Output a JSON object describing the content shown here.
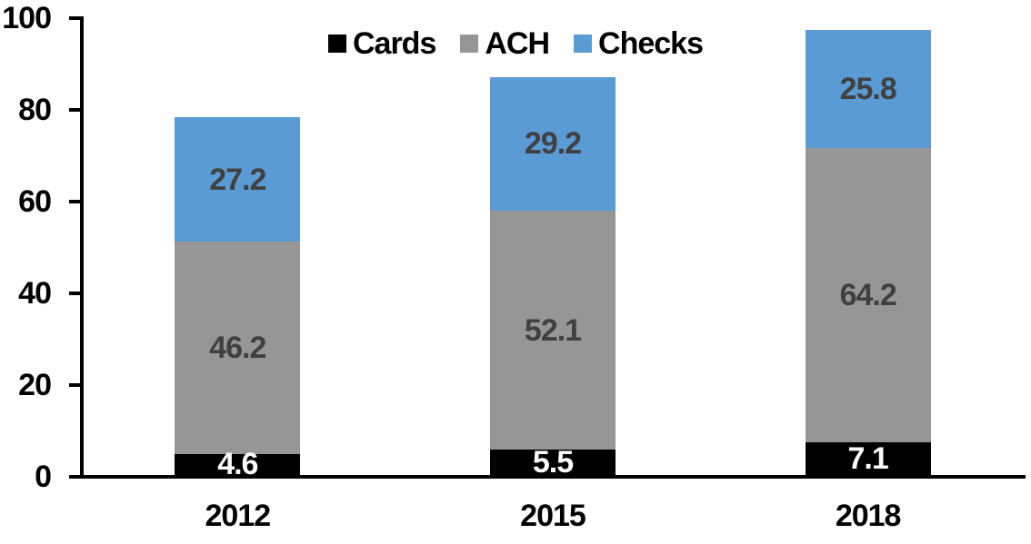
{
  "chart_data": {
    "type": "bar",
    "stacked": true,
    "title": "",
    "xlabel": "",
    "ylabel": "",
    "categories": [
      "2012",
      "2015",
      "2018"
    ],
    "series": [
      {
        "name": "Cards",
        "color": "#000000",
        "label_color": "#ffffff",
        "values": [
          4.6,
          5.5,
          7.1
        ]
      },
      {
        "name": "ACH",
        "color": "#969696",
        "label_color": "#404040",
        "values": [
          46.2,
          52.1,
          64.2
        ]
      },
      {
        "name": "Checks",
        "color": "#5B9BD5",
        "label_color": "#404040",
        "values": [
          27.2,
          29.2,
          25.8
        ]
      }
    ],
    "totals": [
      78.0,
      86.8,
      97.1
    ],
    "ylim": [
      0,
      100
    ],
    "yticks": [
      0,
      20,
      40,
      60,
      80,
      100
    ],
    "grid": false,
    "legend_position": "top-center",
    "axis_color": "#000000",
    "tick_label_color": "#000000"
  }
}
